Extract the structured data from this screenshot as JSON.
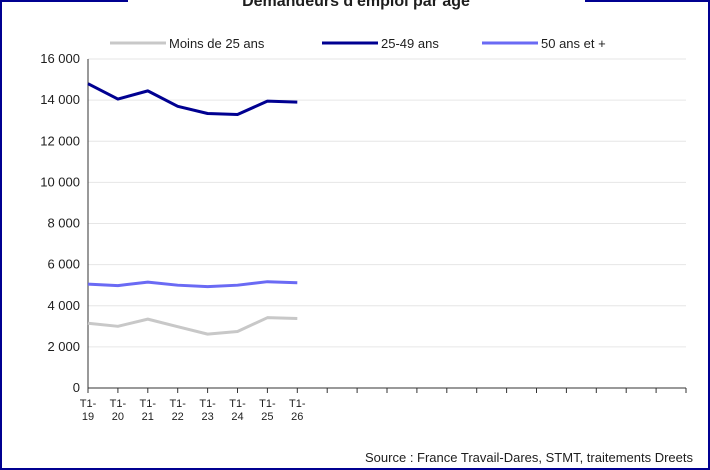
{
  "chart_data": {
    "type": "line",
    "title": "Demandeurs d'emploi par âge",
    "categories": [
      "T1-19",
      "T1-20",
      "T1-21",
      "T1-22",
      "T1-23",
      "T1-24",
      "T1-25",
      "T1-26",
      null,
      null,
      null,
      null,
      null,
      null,
      null,
      null,
      null,
      null,
      null,
      null,
      null
    ],
    "series": [
      {
        "name": "Moins de 25 ans",
        "color": "#c8c8c8",
        "values": [
          3150,
          3000,
          3350,
          2980,
          2620,
          2750,
          3420,
          3380,
          null,
          null,
          null,
          null,
          null,
          null,
          null,
          null,
          null,
          null,
          null,
          null,
          null
        ]
      },
      {
        "name": "25-49 ans",
        "color": "#000091",
        "values": [
          14800,
          14050,
          14450,
          13700,
          13350,
          13300,
          13950,
          13900,
          null,
          null,
          null,
          null,
          null,
          null,
          null,
          null,
          null,
          null,
          null,
          null,
          null
        ]
      },
      {
        "name": "50 ans et +",
        "color": "#6a6af4",
        "values": [
          5050,
          4980,
          5150,
          5000,
          4930,
          5000,
          5170,
          5120,
          null,
          null,
          null,
          null,
          null,
          null,
          null,
          null,
          null,
          null,
          null,
          null,
          null
        ]
      }
    ],
    "ylim": [
      0,
      16000
    ],
    "yticks": [
      0,
      {
        "value": 2000,
        "label": "2 000"
      },
      {
        "value": 4000,
        "label": "4 000"
      },
      {
        "value": 6000,
        "label": "6 000"
      },
      {
        "value": 8000,
        "label": "8 000"
      },
      {
        "value": 10000,
        "label": "10 000"
      },
      {
        "value": 12000,
        "label": "12 000"
      },
      {
        "value": 14000,
        "label": "14 000"
      },
      {
        "value": 16000,
        "label": "16 000"
      }
    ],
    "grid": true,
    "legend": "top",
    "source": "Source : France Travail-Dares, STMT, traitements Dreets"
  }
}
